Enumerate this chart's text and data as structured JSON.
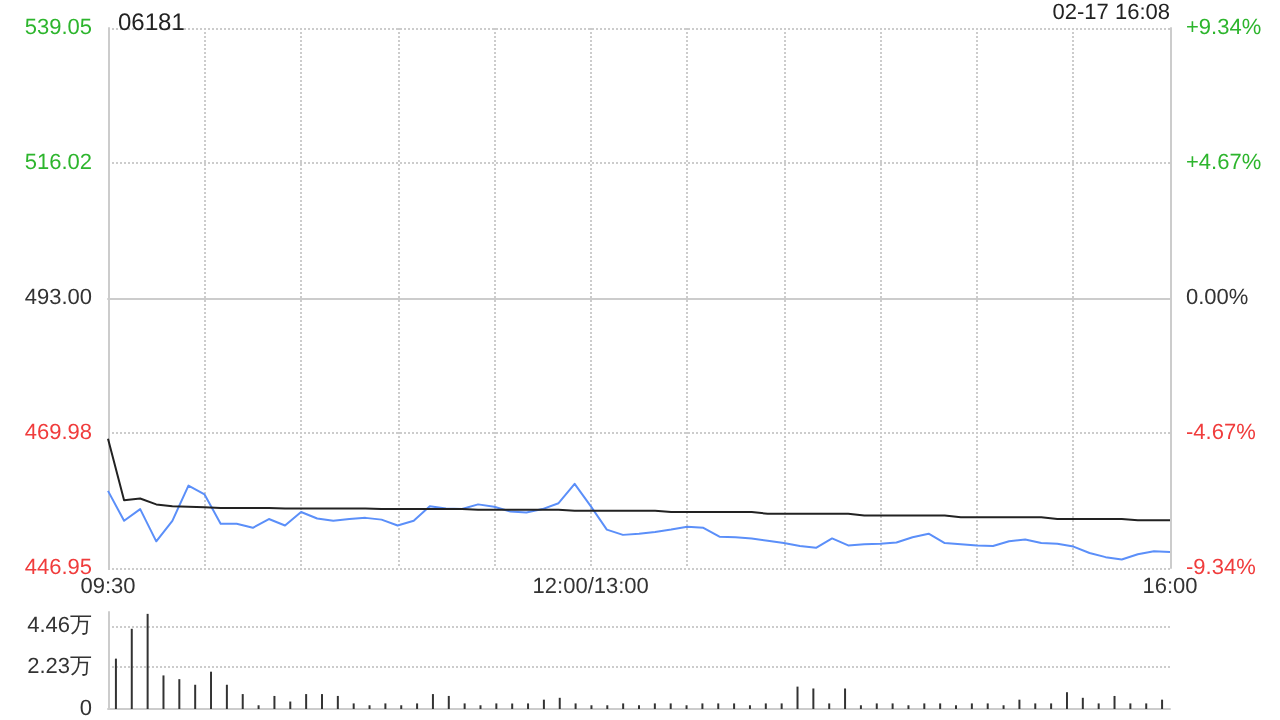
{
  "chart_data": [
    {
      "type": "line",
      "title": "06181",
      "annotations": [
        "02-17 16:08"
      ],
      "categories": [
        "09:30",
        null,
        null,
        null,
        null,
        null,
        null,
        null,
        null,
        null,
        null,
        null,
        null,
        null,
        null,
        null,
        null,
        null,
        null,
        null,
        null,
        null,
        null,
        null,
        null,
        null,
        null,
        null,
        null,
        null,
        "12:00/13:00",
        null,
        null,
        null,
        null,
        null,
        null,
        null,
        null,
        null,
        null,
        null,
        null,
        null,
        null,
        null,
        null,
        null,
        null,
        null,
        null,
        null,
        null,
        null,
        null,
        null,
        null,
        null,
        null,
        null,
        null,
        null,
        null,
        null,
        null,
        null,
        "16:00"
      ],
      "ylim": [
        446.95,
        539.05
      ],
      "yticks": [
        446.95,
        469.98,
        {
          "value": 493,
          "label": "493.00"
        },
        516.02,
        539.05
      ],
      "y2lim": [
        -9.34,
        9.34
      ],
      "y2ticks": [
        {
          "value": -9.34,
          "label": "-9.34%"
        },
        {
          "value": -4.67,
          "label": "-4.67%"
        },
        {
          "value": 0,
          "label": "0.00%"
        },
        {
          "value": 4.67,
          "label": "+4.67%"
        },
        {
          "value": 9.34,
          "label": "+9.34%"
        }
      ],
      "grid": true,
      "marker": "none",
      "line_style": "solid",
      "series": [
        {
          "color": "#5b8ff9",
          "values": [
            460.1,
            455,
            457,
            451.5,
            455,
            461,
            459.5,
            454.5,
            454.5,
            453.8,
            455.3,
            454.2,
            456.5,
            455.4,
            455,
            455.3,
            455.5,
            455.2,
            454.2,
            455,
            457.5,
            457.1,
            457,
            457.8,
            457.4,
            456.6,
            456.4,
            457,
            458,
            461.3,
            457.5,
            453.5,
            452.6,
            452.8,
            453.1,
            453.5,
            454,
            453.8,
            452.3,
            452.2,
            452,
            451.6,
            451.2,
            450.7,
            450.4,
            452,
            450.8,
            451,
            451.1,
            451.3,
            452.2,
            452.8,
            451.2,
            451,
            450.8,
            450.7,
            451.5,
            451.8,
            451.2,
            451.1,
            450.6,
            449.5,
            448.8,
            448.4,
            449.3,
            449.8,
            449.7
          ]
        },
        {
          "color": "#222222",
          "values": [
            469,
            458.5,
            458.8,
            457.8,
            457.5,
            457.4,
            457.3,
            457.2,
            457.2,
            457.2,
            457.2,
            457.1,
            457.1,
            457.1,
            457.1,
            457.1,
            457.1,
            457,
            457,
            457,
            457,
            457,
            457,
            456.9,
            456.9,
            456.9,
            456.9,
            456.9,
            456.9,
            456.7,
            456.7,
            456.7,
            456.7,
            456.7,
            456.7,
            456.5,
            456.5,
            456.5,
            456.5,
            456.5,
            456.5,
            456.2,
            456.2,
            456.2,
            456.2,
            456.2,
            456.2,
            455.9,
            455.9,
            455.9,
            455.9,
            455.9,
            455.9,
            455.6,
            455.6,
            455.6,
            455.6,
            455.6,
            455.6,
            455.3,
            455.3,
            455.3,
            455.3,
            455.3,
            455.1,
            455.1,
            455.1
          ]
        }
      ]
    },
    {
      "type": "bar",
      "tick_labels": "y",
      "grid": "y",
      "ylim": [
        0,
        5.2
      ],
      "yticks": [
        0,
        {
          "value": 2.23,
          "label": "2.23万"
        },
        {
          "value": 4.46,
          "label": "4.46万"
        }
      ],
      "color": "#333333",
      "categories": [
        null,
        null,
        null,
        null,
        null,
        null,
        null,
        null,
        null,
        null,
        null,
        null,
        null,
        null,
        null,
        null,
        null,
        null,
        null,
        null,
        null,
        null,
        null,
        null,
        null,
        null,
        null,
        null,
        null,
        null,
        null,
        null,
        null,
        null,
        null,
        null,
        null,
        null,
        null,
        null,
        null,
        null,
        null,
        null,
        null,
        null,
        null,
        null,
        null,
        null,
        null,
        null,
        null,
        null,
        null,
        null,
        null,
        null,
        null,
        null,
        null,
        null,
        null,
        null,
        null,
        null,
        null
      ],
      "values": [
        2.7,
        4.3,
        5.1,
        1.8,
        1.6,
        1.3,
        2,
        1.3,
        0.8,
        0.2,
        0.7,
        0.4,
        0.8,
        0.8,
        0.7,
        0.3,
        0.2,
        0.3,
        0.2,
        0.3,
        0.8,
        0.7,
        0.3,
        0.2,
        0.3,
        0.3,
        0.3,
        0.5,
        0.6,
        0.3,
        0.2,
        0.2,
        0.3,
        0.2,
        0.3,
        0.3,
        0.2,
        0.3,
        0.3,
        0.3,
        0.2,
        0.3,
        0.3,
        1.2,
        1.1,
        0.3,
        1.1,
        0.2,
        0.3,
        0.3,
        0.2,
        0.3,
        0.3,
        0.2,
        0.3,
        0.3,
        0.2,
        0.5,
        0.3,
        0.3,
        0.9,
        0.6,
        0.3,
        0.7,
        0.3,
        0.3,
        0.5
      ]
    }
  ]
}
